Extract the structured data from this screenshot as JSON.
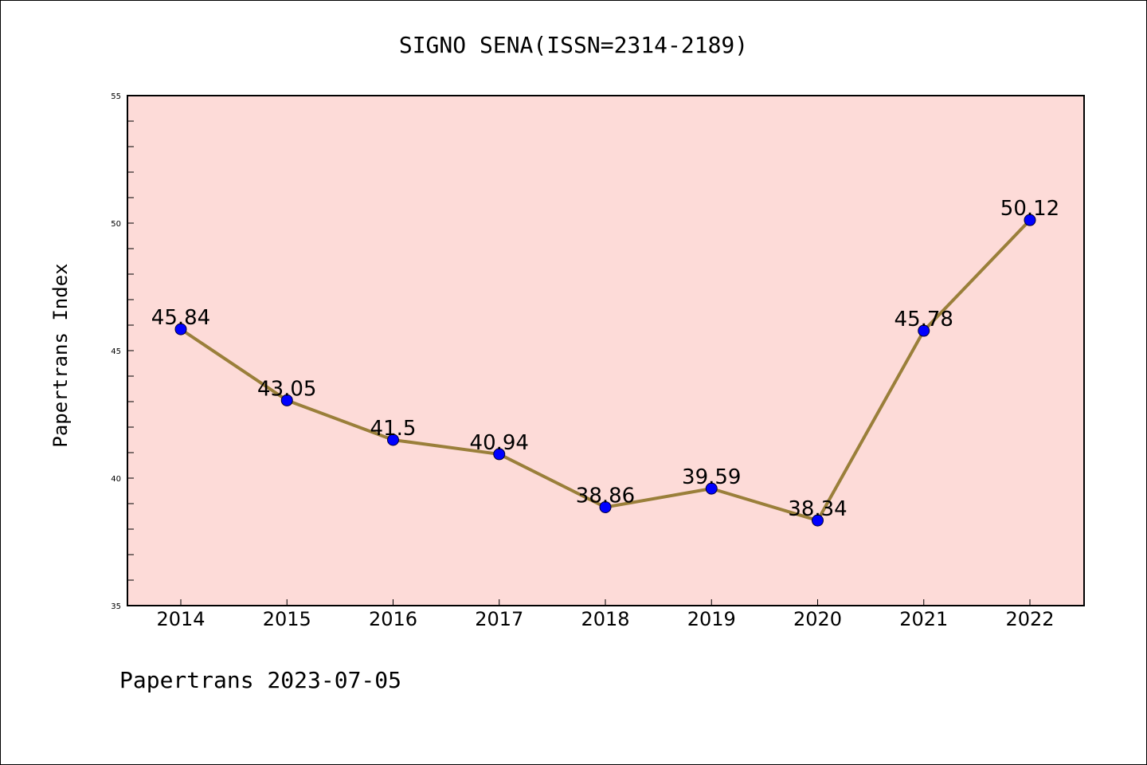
{
  "chart_data": {
    "type": "line",
    "title": "SIGNO SENA(ISSN=2314-2189)",
    "xlabel": "",
    "ylabel": "Papertrans Index",
    "footer": "Papertrans 2023-07-05",
    "categories": [
      "2014",
      "2015",
      "2016",
      "2017",
      "2018",
      "2019",
      "2020",
      "2021",
      "2022"
    ],
    "series": [
      {
        "values": [
          45.84,
          43.05,
          41.5,
          40.94,
          38.86,
          39.59,
          38.34,
          45.78,
          50.12
        ],
        "labels": [
          "45.84",
          "43.05",
          "41.5",
          "40.94",
          "38.86",
          "39.59",
          "38.34",
          "45.78",
          "50.12"
        ]
      }
    ],
    "ylim": [
      35,
      55
    ],
    "yticks": [
      35,
      40,
      45,
      50,
      55
    ],
    "grid": false,
    "legend": "none",
    "colors": {
      "plot_background": "#fddbd8",
      "line": "#9a7f3a",
      "marker": "#0000ff",
      "axes": "#000000"
    }
  }
}
